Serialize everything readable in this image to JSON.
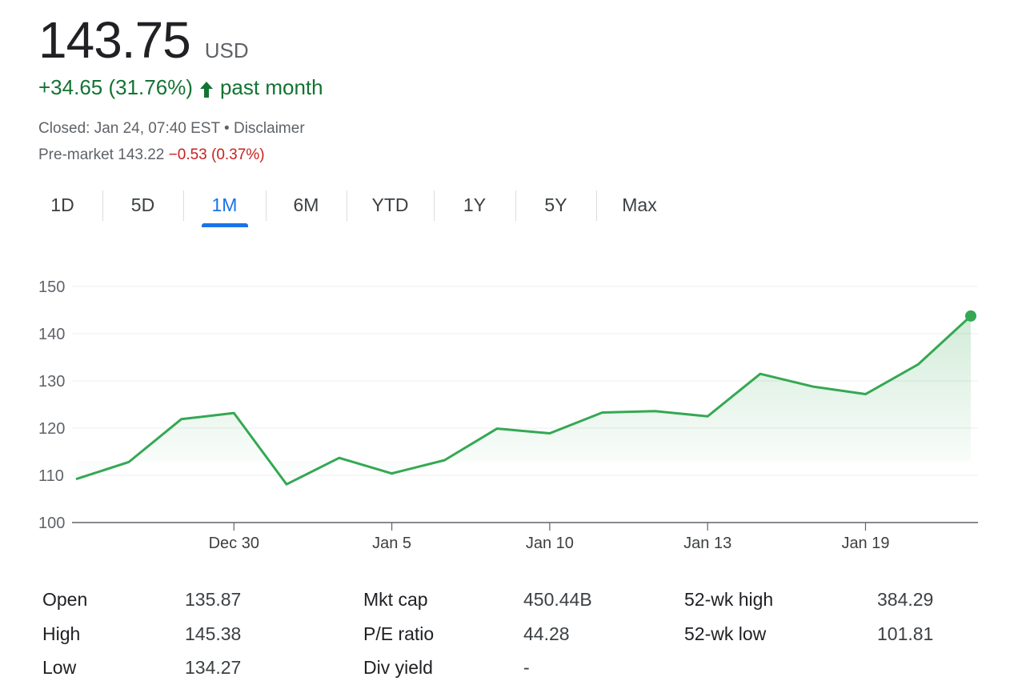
{
  "quote": {
    "price": "143.75",
    "currency": "USD",
    "change": "+34.65 (31.76%)",
    "period": "past month",
    "closed": "Closed: Jan 24, 07:40 EST",
    "separator": "•",
    "disclaimer": "Disclaimer",
    "premarket_label": "Pre-market",
    "premarket_price": "143.22",
    "premarket_change": "−0.53 (0.37%)"
  },
  "colors": {
    "positive": "#137333",
    "negative": "#c5221f",
    "line": "#34a853",
    "active_tab": "#1a73e8"
  },
  "icons": {
    "change_arrow": "arrow-up-icon"
  },
  "tabs": [
    {
      "label": "1D",
      "active": false
    },
    {
      "label": "5D",
      "active": false
    },
    {
      "label": "1M",
      "active": true
    },
    {
      "label": "6M",
      "active": false
    },
    {
      "label": "YTD",
      "active": false
    },
    {
      "label": "1Y",
      "active": false
    },
    {
      "label": "5Y",
      "active": false
    },
    {
      "label": "Max",
      "active": false
    }
  ],
  "chart_data": {
    "type": "area",
    "ylim": [
      100,
      150
    ],
    "yticks": [
      100,
      110,
      120,
      130,
      140,
      150
    ],
    "grid": true,
    "xtick_labels": [
      {
        "label": "Dec 30",
        "index": 3
      },
      {
        "label": "Jan 5",
        "index": 6
      },
      {
        "label": "Jan 10",
        "index": 9
      },
      {
        "label": "Jan 13",
        "index": 12
      },
      {
        "label": "Jan 19",
        "index": 15
      }
    ],
    "values": [
      109.2,
      112.8,
      121.9,
      123.2,
      108.1,
      113.7,
      110.4,
      113.2,
      119.9,
      118.9,
      123.3,
      123.6,
      122.5,
      131.5,
      128.8,
      127.2,
      133.5,
      143.75
    ]
  },
  "stats": [
    {
      "label": "Open",
      "value": "135.87"
    },
    {
      "label": "High",
      "value": "145.38"
    },
    {
      "label": "Low",
      "value": "134.27"
    },
    {
      "label": "Mkt cap",
      "value": "450.44B"
    },
    {
      "label": "P/E ratio",
      "value": "44.28"
    },
    {
      "label": "Div yield",
      "value": "-"
    },
    {
      "label": "52-wk high",
      "value": "384.29"
    },
    {
      "label": "52-wk low",
      "value": "101.81"
    }
  ]
}
